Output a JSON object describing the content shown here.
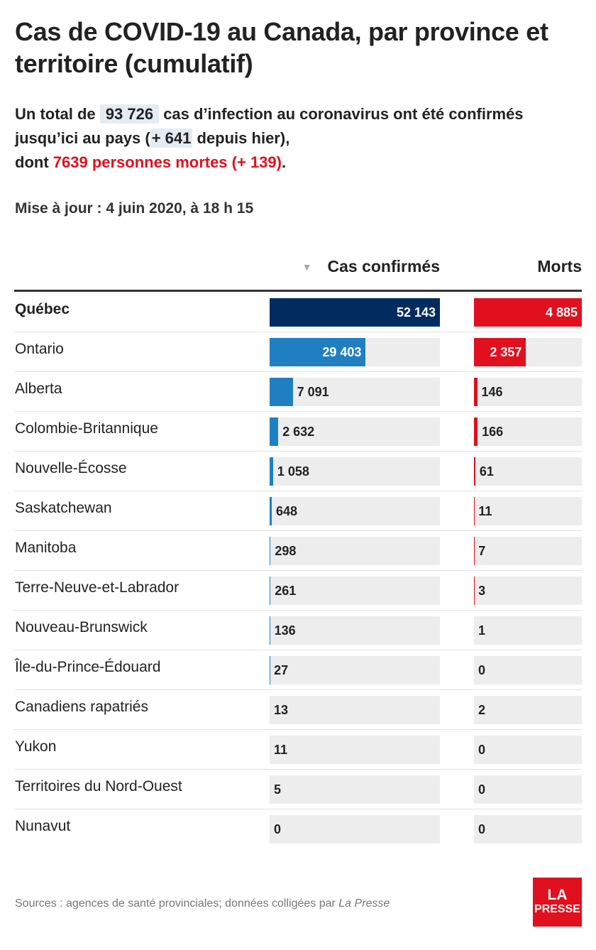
{
  "title": "Cas de COVID-19 au Canada, par province et territoire (cumulatif)",
  "subtitle": {
    "p1": "Un total de ",
    "total_cases": "93 726",
    "p2": " cas d’infection au coronavirus ont été confirmés jusqu’ici au pays (",
    "new_cases": "+ 641",
    "p3": " depuis hier),",
    "p4": "dont ",
    "deaths_text": "7639 personnes mortes (+ 139)",
    "p5": "."
  },
  "updated": "Mise à jour : 4 juin 2020, à 18 h 15",
  "source": {
    "prefix": "Sources : agences de santé provinciales; données colligées par ",
    "publication": "La Presse"
  },
  "logo": {
    "line1": "LA",
    "line2": "PRESSE"
  },
  "colors": {
    "cases_top": "#002c5f",
    "cases": "#1f7fc1",
    "deaths": "#e0101e",
    "track": "#ededed"
  },
  "chart_data": {
    "type": "bar",
    "columns": [
      "Cas confirmés",
      "Morts"
    ],
    "sort_icon": "triangle-down-icon",
    "categories": [
      "Québec",
      "Ontario",
      "Alberta",
      "Colombie-Britannique",
      "Nouvelle-Écosse",
      "Saskatchewan",
      "Manitoba",
      "Terre-Neuve-et-Labrador",
      "Nouveau-Brunswick",
      "Île-du-Prince-Édouard",
      "Canadiens rapatriés",
      "Yukon",
      "Territoires du Nord-Ouest",
      "Nunavut"
    ],
    "series": [
      {
        "name": "Cas confirmés",
        "values": [
          52143,
          29403,
          7091,
          2632,
          1058,
          648,
          298,
          261,
          136,
          27,
          13,
          11,
          5,
          0
        ],
        "labels": [
          "52 143",
          "29 403",
          "7 091",
          "2 632",
          "1 058",
          "648",
          "298",
          "261",
          "136",
          "27",
          "13",
          "11",
          "5",
          "0"
        ]
      },
      {
        "name": "Morts",
        "values": [
          4885,
          2357,
          146,
          166,
          61,
          11,
          7,
          3,
          1,
          0,
          2,
          0,
          0,
          0
        ],
        "labels": [
          "4 885",
          "2 357",
          "146",
          "166",
          "61",
          "11",
          "7",
          "3",
          "1",
          "0",
          "2",
          "0",
          "0",
          "0"
        ]
      }
    ]
  }
}
